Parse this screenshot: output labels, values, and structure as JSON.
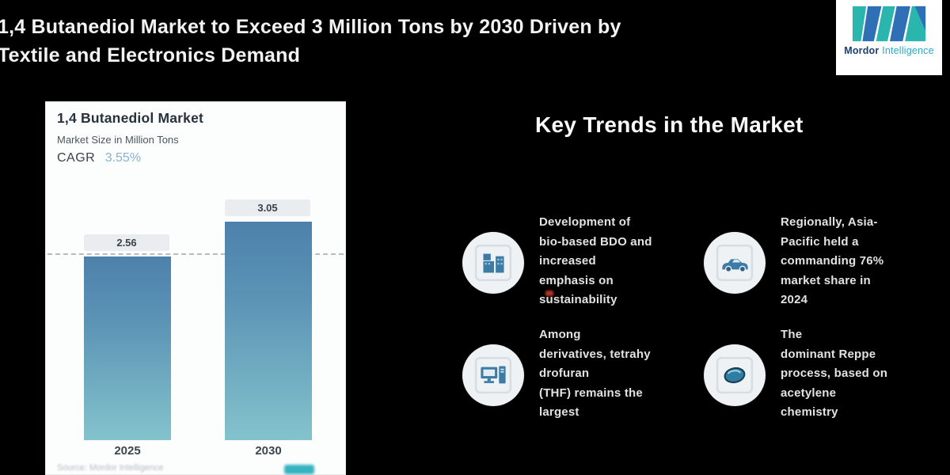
{
  "header": {
    "title": "1,4 Butanediol Market to Exceed 3 Million Tons by 2030 Driven by\nTextile and Electronics Demand"
  },
  "logo": {
    "brand_word1": "Mordor",
    "brand_word2": "Intelligence",
    "teal": "#2ab5af",
    "blue": "#2e6fb5"
  },
  "chart_card": {
    "title": "1,4 Butanediol Market",
    "subtitle": "Market Size in Million Tons",
    "cagr_label": "CAGR",
    "cagr_value": "3.55%",
    "source_text": "Source: Mordor Intelligence"
  },
  "chart_data": {
    "type": "bar",
    "title": "1,4 Butanediol Market",
    "subtitle": "Market Size in Million Tons",
    "unit": "Million Tons",
    "categories": [
      "2025",
      "2030"
    ],
    "values": [
      2.56,
      3.05
    ],
    "labels": [
      "2.56",
      "3.05"
    ],
    "cagr_percent": 3.55,
    "ylim": [
      0,
      3.5
    ],
    "grid": false,
    "legend": "none",
    "reference_line": {
      "value": 2.56,
      "style": "dashed",
      "color": "#b4bcc2"
    },
    "bar_color_top": "#4d81ab",
    "bar_color_bottom": "#83c3cc",
    "label_box_bg": "#e9edf0"
  },
  "trends": {
    "heading": "Key Trends in the Market",
    "items": [
      {
        "icon": "buildings-icon",
        "text": "Development of\nbio-based BDO and\nincreased\nemphasis on\nsustainability"
      },
      {
        "icon": "car-icon",
        "text": "Regionally, Asia-\nPacific held a\ncommanding 76%\nmarket share in\n2024"
      },
      {
        "icon": "computer-icon",
        "text": "Among\nderivatives, tetrahy\ndrofuran\n(THF) remains the\nlargest"
      },
      {
        "icon": "chemistry-icon",
        "text": "The\ndominant Reppe\nprocess, based on\nacetylene\nchemistry"
      }
    ]
  },
  "colors": {
    "background": "#000000",
    "card_bg": "#fcfdfd",
    "icon_blue": "#3c7ba6",
    "cagr_blue": "#85b4d6",
    "trend_text": "#e2e2e2"
  }
}
